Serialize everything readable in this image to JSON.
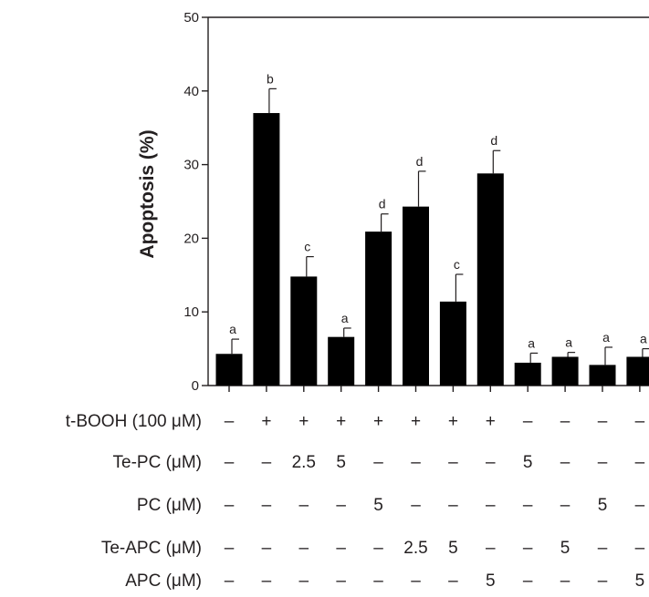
{
  "chart_data": {
    "type": "bar",
    "ylabel": "Apoptosis (%)",
    "ylim": [
      0,
      50
    ],
    "yticks": [
      "0",
      "10",
      "20",
      "30",
      "40",
      "50"
    ],
    "grid": false,
    "bar_color": "#000000",
    "values": [
      4.3,
      37.0,
      14.8,
      6.6,
      20.9,
      24.3,
      11.4,
      28.8,
      3.1,
      3.9,
      2.8,
      3.9
    ],
    "errors": [
      2.0,
      3.3,
      2.7,
      1.2,
      2.4,
      4.8,
      3.7,
      3.1,
      1.3,
      0.6,
      2.4,
      1.1
    ],
    "significance": [
      "a",
      "b",
      "c",
      "a",
      "d",
      "d",
      "c",
      "d",
      "a",
      "a",
      "a",
      "a"
    ],
    "treatment_table": {
      "rows": [
        {
          "label": "t-BOOH (100 μM)",
          "cells": [
            "–",
            "+",
            "+",
            "+",
            "+",
            "+",
            "+",
            "+",
            "–",
            "–",
            "–",
            "–"
          ]
        },
        {
          "label": "Te-PC (μM)",
          "cells": [
            "–",
            "–",
            "2.5",
            "5",
            "–",
            "–",
            "–",
            "–",
            "5",
            "–",
            "–",
            "–"
          ]
        },
        {
          "label": "PC (μM)",
          "cells": [
            "–",
            "–",
            "–",
            "–",
            "5",
            "–",
            "–",
            "–",
            "–",
            "–",
            "5",
            "–"
          ]
        },
        {
          "label": "Te-APC (μM)",
          "cells": [
            "–",
            "–",
            "–",
            "–",
            "–",
            "2.5",
            "5",
            "–",
            "–",
            "5",
            "–",
            "–"
          ]
        },
        {
          "label": "APC (μM)",
          "cells": [
            "–",
            "–",
            "–",
            "–",
            "–",
            "–",
            "–",
            "5",
            "–",
            "–",
            "–",
            "5"
          ]
        }
      ]
    }
  }
}
